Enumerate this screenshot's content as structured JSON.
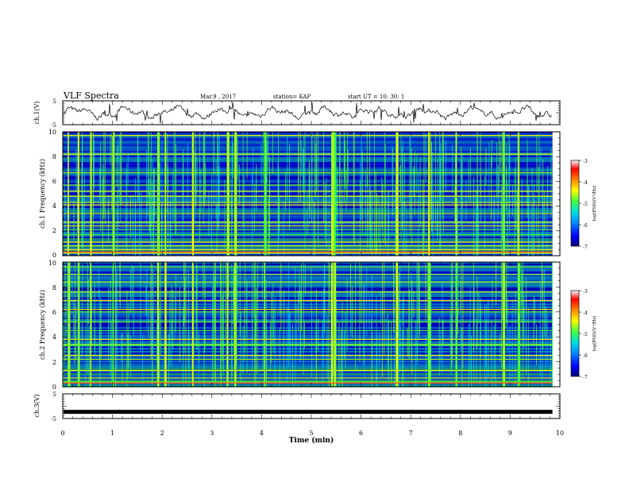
{
  "header": {
    "title": "VLF Spectra",
    "date": "Mar.9 , 2017",
    "station": "station= KAP",
    "start_ut": "start UT = 10: 30: 1"
  },
  "chart_data": [
    {
      "type": "line",
      "panel": "ch1-waveform",
      "ylabel": "ch.1(V)",
      "ylim": [
        -5,
        5
      ],
      "y_ticks": [
        "5",
        "-5"
      ],
      "note": "noisy waveform near 0 V"
    },
    {
      "type": "heatmap",
      "panel": "ch1-spectrogram",
      "ylabel": "ch.1 Frequency (kHz)",
      "ylim": [
        0,
        10
      ],
      "y_ticks": [
        "0",
        "2",
        "4",
        "6",
        "8",
        "10"
      ],
      "colorbar": {
        "label": "log(PSD)(V²/Hz)",
        "range": [
          -7,
          -3
        ],
        "ticks": [
          "-3",
          "-4",
          "-5",
          "-6",
          "-7"
        ]
      },
      "persistent_lines_khz": [
        0.2,
        0.5,
        0.8,
        1.1,
        1.7,
        2.1,
        2.4,
        2.7,
        3.4,
        4.1,
        4.3,
        4.8,
        5.2,
        5.7,
        6.7,
        8.2,
        9.7
      ],
      "impulse_times_min": [
        0.1,
        0.3,
        0.55,
        1.0,
        1.9,
        2.05,
        2.6,
        3.3,
        3.45,
        4.05,
        5.4,
        5.45,
        6.7,
        7.35,
        7.9,
        8.85,
        9.15
      ]
    },
    {
      "type": "heatmap",
      "panel": "ch2-spectrogram",
      "ylabel": "ch.2 Frequency (kHz)",
      "ylim": [
        0,
        10
      ],
      "y_ticks": [
        "0",
        "2",
        "4",
        "6",
        "8",
        "10"
      ],
      "colorbar": {
        "label": "log(PSD)(V²/Hz)",
        "range": [
          -7,
          -3
        ],
        "ticks": [
          "-3",
          "-4",
          "-5",
          "-6",
          "-7"
        ]
      },
      "persistent_lines_khz": [
        0.4,
        0.7,
        1.3,
        2.2,
        2.5,
        3.3,
        3.4,
        3.8,
        4.5,
        5.2,
        6.0,
        6.2,
        6.9,
        7.6,
        8.4,
        9.0,
        9.6
      ],
      "impulse_times_min": [
        0.1,
        0.3,
        0.55,
        1.0,
        1.9,
        2.05,
        2.6,
        3.3,
        3.45,
        4.05,
        5.4,
        5.45,
        6.7,
        7.35,
        7.9,
        8.85,
        9.15
      ]
    },
    {
      "type": "line",
      "panel": "ch3-waveform",
      "ylabel": "ch.3(V)",
      "ylim": [
        -5,
        5
      ],
      "y_ticks": [
        "5",
        "-5"
      ],
      "x": [
        0,
        9.85
      ],
      "y": [
        -2.3,
        -2.3
      ]
    }
  ],
  "xaxis": {
    "label": "Time (min)",
    "xlim": [
      0,
      10
    ],
    "ticks": [
      "0",
      "1",
      "2",
      "3",
      "4",
      "5",
      "6",
      "7",
      "8",
      "9",
      "10"
    ],
    "data_end_min": 9.85
  },
  "colors": {
    "waveform": "#000000",
    "colormap": [
      "#00007a",
      "#0000ff",
      "#0090ff",
      "#00e0e0",
      "#40ff40",
      "#ffff00",
      "#ff8000",
      "#ff0000",
      "#ffffff"
    ]
  }
}
